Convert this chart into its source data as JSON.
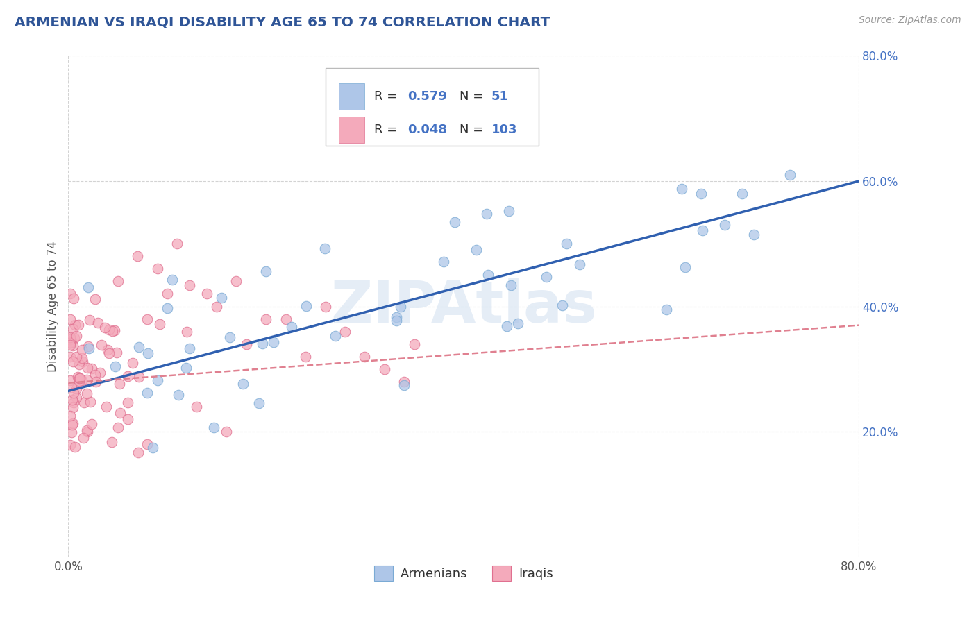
{
  "title": "ARMENIAN VS IRAQI DISABILITY AGE 65 TO 74 CORRELATION CHART",
  "title_color": "#2F5597",
  "source_text": "Source: ZipAtlas.com",
  "ylabel": "Disability Age 65 to 74",
  "xlim": [
    0.0,
    0.8
  ],
  "ylim": [
    0.0,
    0.8
  ],
  "armenian_color": "#AEC6E8",
  "armenian_edge_color": "#7AAAD4",
  "iraqi_color": "#F4AABB",
  "iraqi_edge_color": "#E07090",
  "armenian_line_color": "#3060B0",
  "iraqi_line_color": "#E08090",
  "R_armenian": "0.579",
  "N_armenian": "51",
  "R_iraqi": "0.048",
  "N_iraqi": "103",
  "watermark": "ZIPAtlas",
  "background_color": "#FFFFFF",
  "grid_color": "#C8C8C8",
  "legend_armenians": "Armenians",
  "legend_iraqis": "Iraqis",
  "arm_line_x": [
    0.0,
    0.8
  ],
  "arm_line_y": [
    0.265,
    0.6
  ],
  "irq_line_x": [
    0.0,
    0.8
  ],
  "irq_line_y": [
    0.278,
    0.37
  ]
}
